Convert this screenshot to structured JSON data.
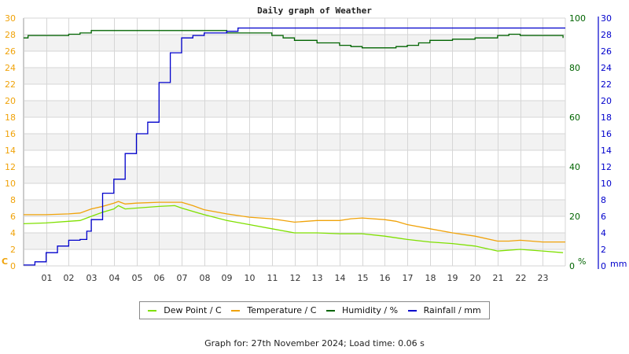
{
  "chart_data": {
    "type": "line",
    "title": "Daily graph of Weather",
    "xlabel": "",
    "x_ticks": [
      "01",
      "02",
      "03",
      "04",
      "05",
      "06",
      "07",
      "08",
      "09",
      "10",
      "11",
      "12",
      "13",
      "14",
      "15",
      "16",
      "17",
      "18",
      "19",
      "20",
      "21",
      "22",
      "23"
    ],
    "x_range": [
      0,
      24
    ],
    "grid": true,
    "legend_position": "bottom",
    "axes": {
      "left": {
        "label": "C",
        "range": [
          0,
          30
        ],
        "ticks": [
          0,
          2,
          4,
          6,
          8,
          10,
          12,
          14,
          16,
          18,
          20,
          22,
          24,
          26,
          28,
          30
        ],
        "color": "#f0a30a"
      },
      "right_humidity": {
        "label": "%",
        "range": [
          0,
          100
        ],
        "ticks": [
          0,
          20,
          40,
          60,
          80,
          100
        ],
        "color": "#006400"
      },
      "right_rainfall": {
        "label": "mm",
        "range": [
          0,
          30
        ],
        "ticks": [
          0,
          2,
          4,
          6,
          8,
          10,
          12,
          14,
          16,
          18,
          20,
          22,
          24,
          26,
          28,
          30
        ],
        "color": "#0000cc"
      }
    },
    "series": [
      {
        "name": "Dew Point / C",
        "axis": "left",
        "color": "#7fe000",
        "x": [
          0,
          1,
          2,
          2.5,
          3,
          3.5,
          4,
          4.2,
          4.5,
          5,
          6,
          6.7,
          7,
          8,
          9,
          10,
          11,
          12,
          13,
          14,
          15,
          16,
          17,
          18,
          19,
          20,
          21,
          22,
          23,
          23.9
        ],
        "values": [
          5.1,
          5.2,
          5.4,
          5.5,
          6.0,
          6.5,
          6.9,
          7.3,
          6.9,
          7.0,
          7.2,
          7.3,
          7.0,
          6.2,
          5.5,
          5.0,
          4.5,
          4.0,
          4.0,
          3.9,
          3.9,
          3.6,
          3.2,
          2.9,
          2.7,
          2.4,
          1.8,
          2.0,
          1.8,
          1.6
        ]
      },
      {
        "name": "Temperature / C",
        "axis": "left",
        "color": "#f0a30a",
        "x": [
          0,
          1,
          2,
          2.5,
          3,
          3.5,
          4,
          4.2,
          4.5,
          5,
          6,
          7,
          7.5,
          8,
          9,
          10,
          11,
          12,
          13,
          14,
          14.5,
          15,
          16,
          16.5,
          17,
          18,
          19,
          20,
          21,
          21.5,
          22,
          23,
          24
        ],
        "values": [
          6.2,
          6.2,
          6.3,
          6.4,
          6.9,
          7.2,
          7.6,
          7.8,
          7.5,
          7.6,
          7.7,
          7.7,
          7.3,
          6.8,
          6.3,
          5.9,
          5.7,
          5.3,
          5.5,
          5.5,
          5.7,
          5.8,
          5.6,
          5.4,
          5.0,
          4.5,
          4.0,
          3.6,
          3.0,
          3.0,
          3.1,
          2.9,
          2.9
        ]
      },
      {
        "name": "Humidity / %",
        "axis": "right_humidity",
        "color": "#006400",
        "x": [
          0,
          0.2,
          2,
          2.5,
          3,
          4,
          5,
          7,
          9,
          10,
          10.5,
          11,
          11.5,
          12,
          13,
          14,
          14.5,
          15,
          16,
          16.5,
          17,
          17.5,
          18,
          19,
          20,
          21,
          21.5,
          22,
          23,
          23.9
        ],
        "values": [
          92,
          93,
          93.5,
          94,
          95,
          95,
          95,
          95,
          94,
          94,
          94,
          93,
          92,
          91,
          90,
          89,
          88.5,
          88,
          88,
          88.5,
          89,
          90,
          91,
          91.5,
          92,
          93,
          93.5,
          93,
          93,
          92
        ]
      },
      {
        "name": "Rainfall / mm",
        "axis": "right_rainfall",
        "color": "#0000cc",
        "x": [
          0,
          0.5,
          1,
          1.5,
          2,
          2.5,
          2.8,
          3,
          3.5,
          4,
          4.5,
          5,
          5.5,
          6,
          6.5,
          7,
          7.5,
          8,
          9,
          9.5,
          24
        ],
        "values": [
          0.1,
          0.5,
          1.6,
          2.4,
          3.1,
          3.2,
          4.2,
          5.6,
          8.8,
          10.5,
          13.6,
          16.0,
          17.4,
          22.2,
          25.8,
          27.6,
          27.9,
          28.2,
          28.4,
          28.8,
          28.8
        ]
      }
    ]
  },
  "legend": {
    "items": [
      {
        "label": "Dew Point / C",
        "color": "#7fe000"
      },
      {
        "label": "Temperature / C",
        "color": "#f0a30a"
      },
      {
        "label": "Humidity / %",
        "color": "#006400"
      },
      {
        "label": "Rainfall / mm",
        "color": "#0000cc"
      }
    ]
  },
  "footer": {
    "text": "Graph for: 27th November 2024; Load time: 0.06 s"
  }
}
